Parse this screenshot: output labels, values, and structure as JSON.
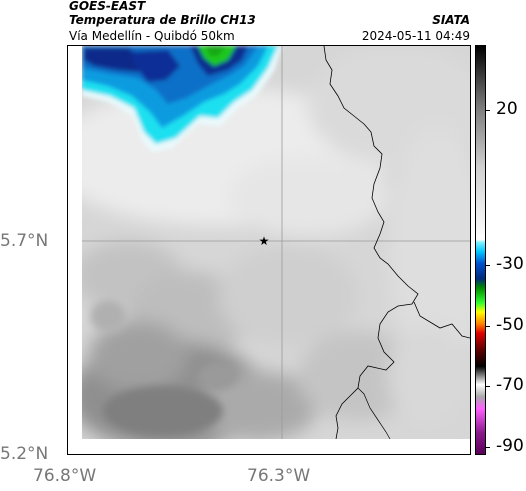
{
  "header": {
    "satellite": "GOES-EAST",
    "product": "Temperatura de Brillo CH13",
    "route": "Vía Medellín - Quibdó 50km",
    "institution": "SIATA",
    "datetime": "2024-05-11 04:49"
  },
  "map": {
    "lat_labels": [
      "5.7°N",
      "5.2°N"
    ],
    "lon_labels": [
      "76.8°W",
      "76.3°W"
    ],
    "marker_icon": "star-icon",
    "colors": {
      "gray_light": "#e2e2e2",
      "gray_dark": "#7a7a7a",
      "cloud_cyan": "#1ee0f0",
      "cloud_blue": "#0a6fc8",
      "cloud_navy": "#0a2a8a",
      "cloud_green": "#1fc81f"
    }
  },
  "colorbar": {
    "labels": [
      "20",
      "-30",
      "-50",
      "-70",
      "-90"
    ],
    "top_value": 40,
    "bottom_value": -95
  }
}
